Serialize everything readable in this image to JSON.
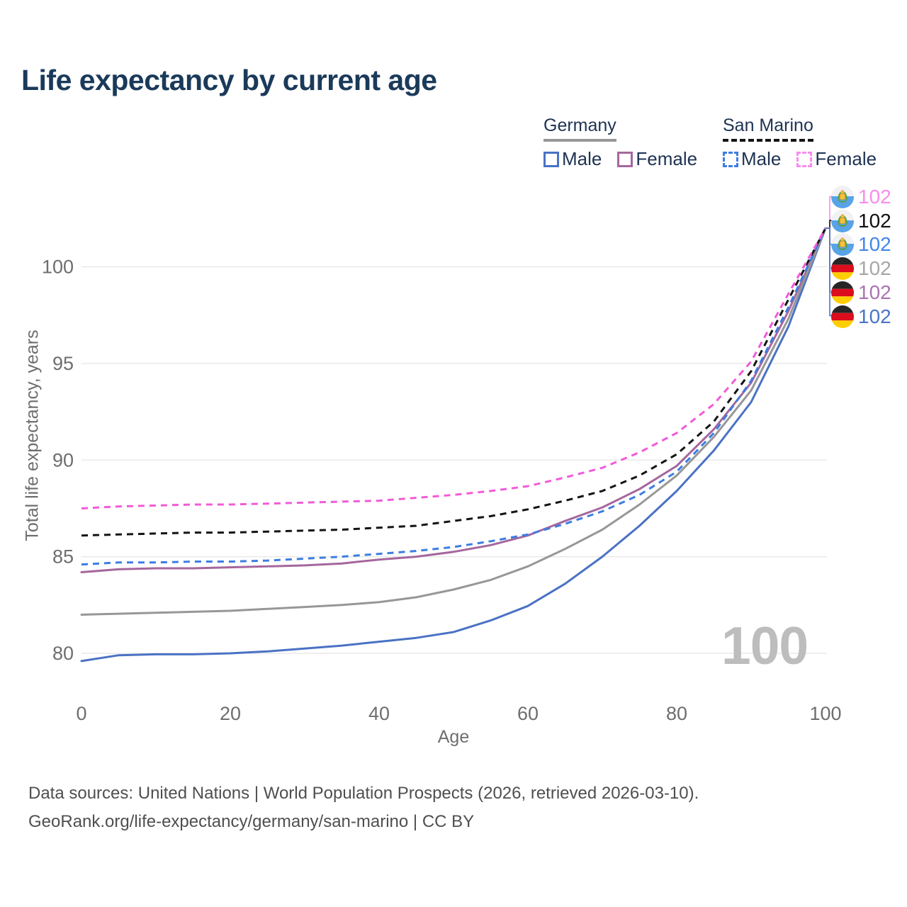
{
  "page": {
    "title": "Life expectancy by current age"
  },
  "legend": {
    "germany": {
      "label": "Germany",
      "male_label": "Male",
      "female_label": "Female"
    },
    "san_marino": {
      "label": "San Marino",
      "male_label": "Male",
      "female_label": "Female"
    }
  },
  "axes": {
    "x_title": "Age",
    "y_title": "Total life expectancy, years"
  },
  "footer": {
    "line1": "Data sources: United Nations | World Population Prospects (2026, retrieved 2026-03-10).",
    "line2": "GeoRank.org/life-expectancy/germany/san-marino | CC BY"
  },
  "chart_data": {
    "type": "line",
    "title": "Life expectancy by current age",
    "xlabel": "Age",
    "ylabel": "Total life expectancy, years",
    "xlim": [
      0,
      100
    ],
    "ylim": [
      78.5,
      103
    ],
    "x_ticks": [
      0,
      20,
      40,
      60,
      80,
      100
    ],
    "y_ticks": [
      80,
      85,
      90,
      95,
      100
    ],
    "grid_color": "#e8e8e8",
    "watermark": "100",
    "ages": [
      0,
      5,
      10,
      15,
      20,
      25,
      30,
      35,
      40,
      45,
      50,
      55,
      60,
      65,
      70,
      75,
      80,
      85,
      90,
      95,
      100
    ],
    "series": [
      {
        "name": "San Marino Female",
        "country": "San Marino",
        "sex": "Female",
        "dashed": true,
        "color": "#f25ad8",
        "label_color": "#f98bee",
        "end_value": "102",
        "values": [
          87.5,
          87.6,
          87.65,
          87.7,
          87.7,
          87.75,
          87.8,
          87.85,
          87.9,
          88.05,
          88.2,
          88.4,
          88.65,
          89.1,
          89.6,
          90.4,
          91.4,
          92.9,
          95.1,
          98.6,
          102
        ]
      },
      {
        "name": "San Marino Total",
        "country": "San Marino",
        "sex": "Both",
        "dashed": true,
        "color": "#141414",
        "label_color": "#111111",
        "end_value": "102",
        "values": [
          86.1,
          86.15,
          86.2,
          86.25,
          86.25,
          86.3,
          86.35,
          86.4,
          86.5,
          86.6,
          86.85,
          87.1,
          87.45,
          87.9,
          88.4,
          89.2,
          90.3,
          92.0,
          94.6,
          98.3,
          102
        ]
      },
      {
        "name": "San Marino Male",
        "country": "San Marino",
        "sex": "Male",
        "dashed": true,
        "color": "#3c7de2",
        "label_color": "#4287e8",
        "end_value": "102",
        "values": [
          84.6,
          84.7,
          84.7,
          84.75,
          84.75,
          84.8,
          84.9,
          85.0,
          85.15,
          85.3,
          85.5,
          85.8,
          86.15,
          86.7,
          87.35,
          88.2,
          89.4,
          91.4,
          94.1,
          97.9,
          102
        ]
      },
      {
        "name": "Germany Total",
        "country": "Germany",
        "sex": "Both",
        "dashed": false,
        "color": "#979797",
        "label_color": "#a6a6a6",
        "end_value": "102",
        "values": [
          82.0,
          82.05,
          82.1,
          82.15,
          82.2,
          82.3,
          82.4,
          82.5,
          82.65,
          82.9,
          83.3,
          83.8,
          84.5,
          85.4,
          86.4,
          87.7,
          89.2,
          91.2,
          93.6,
          97.3,
          102
        ]
      },
      {
        "name": "Germany Female",
        "country": "Germany",
        "sex": "Female",
        "dashed": false,
        "color": "#a5679d",
        "label_color": "#ab74b2",
        "end_value": "102",
        "values": [
          84.2,
          84.35,
          84.4,
          84.4,
          84.45,
          84.5,
          84.55,
          84.65,
          84.85,
          85.0,
          85.25,
          85.6,
          86.1,
          86.85,
          87.55,
          88.5,
          89.7,
          91.6,
          94.0,
          97.7,
          102
        ]
      },
      {
        "name": "Germany Male",
        "country": "Germany",
        "sex": "Male",
        "dashed": false,
        "color": "#4a72c4",
        "label_color": "#4a74c9",
        "end_value": "102",
        "values": [
          79.6,
          79.9,
          79.95,
          79.95,
          80.0,
          80.1,
          80.25,
          80.4,
          80.6,
          80.8,
          81.1,
          81.7,
          82.45,
          83.6,
          85.0,
          86.6,
          88.4,
          90.5,
          93.0,
          96.9,
          102
        ]
      }
    ]
  }
}
